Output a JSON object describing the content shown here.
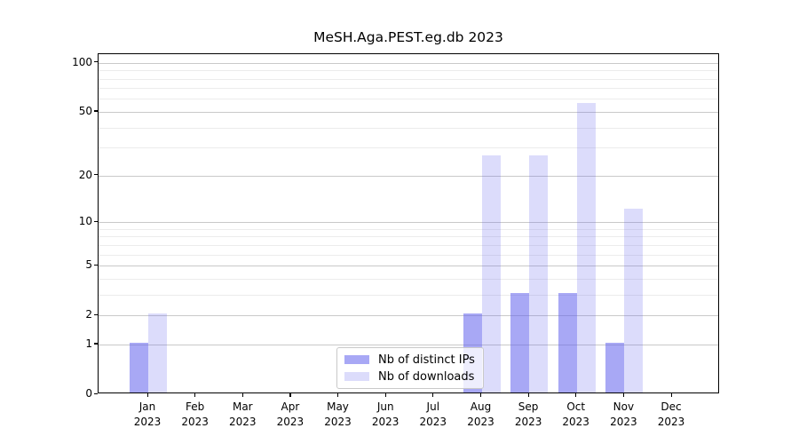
{
  "title": "MeSH.Aga.PEST.eg.db 2023",
  "colors": {
    "bar_ips": "rgba(97,97,237,0.55)",
    "bar_downloads": "rgba(97,97,237,0.22)",
    "grid_major": "#c9c9c9",
    "grid_minor": "#ececec",
    "axis": "#000000",
    "legend_border": "#c9c9c9"
  },
  "chart_data": {
    "type": "bar",
    "title": "MeSH.Aga.PEST.eg.db 2023",
    "categories": [
      "Jan",
      "Feb",
      "Mar",
      "Apr",
      "May",
      "Jun",
      "Jul",
      "Aug",
      "Sep",
      "Oct",
      "Nov",
      "Dec"
    ],
    "year_label": "2023",
    "series": [
      {
        "name": "Nb of distinct IPs",
        "key": "distinct-ips",
        "values": [
          1,
          0,
          0,
          0,
          0,
          0,
          0,
          2,
          3,
          3,
          1,
          0
        ]
      },
      {
        "name": "Nb of downloads",
        "key": "downloads",
        "values": [
          2,
          0,
          0,
          0,
          0,
          0,
          0,
          26,
          26,
          55,
          12,
          0
        ]
      }
    ],
    "xlabel": "",
    "ylabel": "",
    "yscale": "log1p",
    "ylim": [
      0,
      113
    ],
    "yticks": [
      0,
      1,
      2,
      5,
      10,
      20,
      50,
      100
    ],
    "yticks_minor": [
      3,
      4,
      6,
      7,
      8,
      9,
      30,
      40,
      60,
      70,
      80,
      90
    ],
    "grid": true,
    "legend_position": "lower-center-inside"
  }
}
